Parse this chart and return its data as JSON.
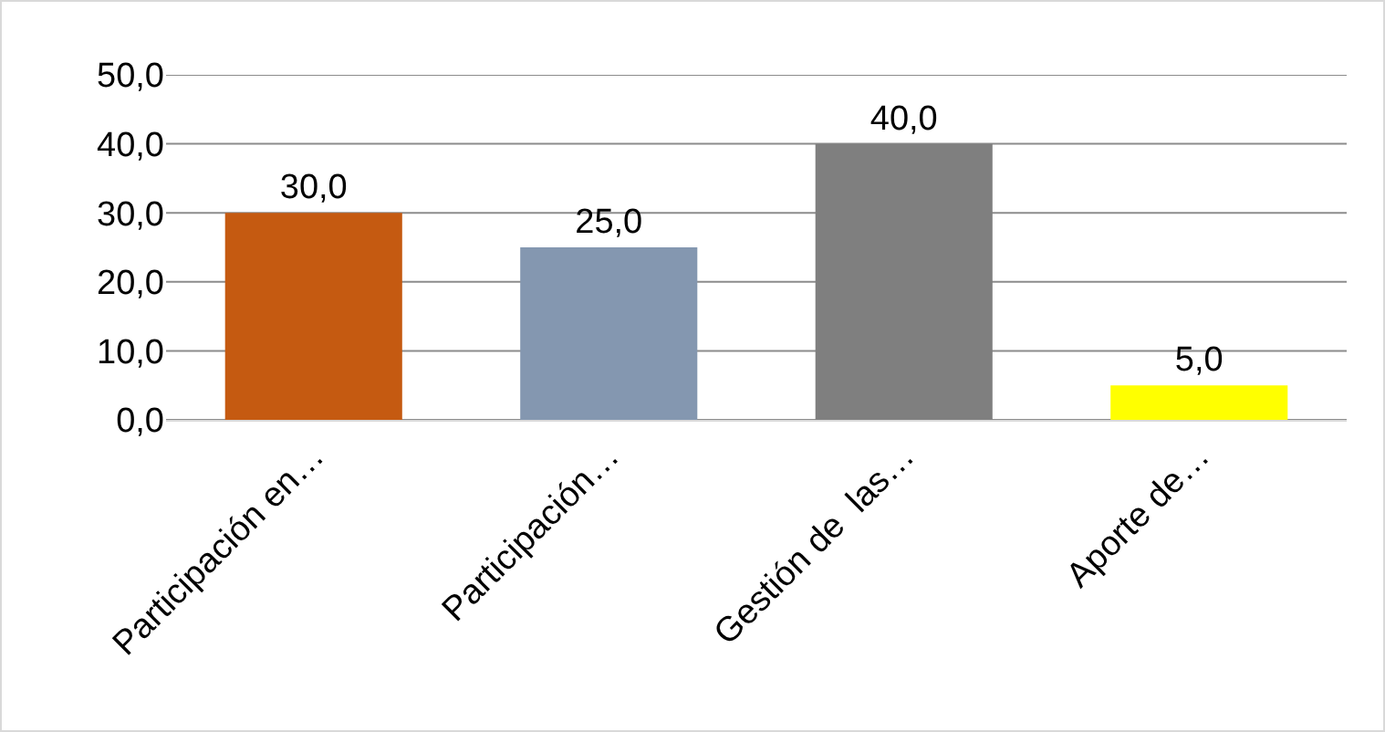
{
  "chart_data": {
    "type": "bar",
    "categories": [
      "Participación en…",
      "Participación…",
      "Gestión de  las…",
      "Aporte de…"
    ],
    "values": [
      30,
      25,
      40,
      5
    ],
    "colors": [
      "#c55a11",
      "#8497b0",
      "#7f7f7f",
      "#ffff00"
    ],
    "value_labels": [
      "30,0",
      "25,0",
      "40,0",
      "5,0"
    ],
    "ylim": [
      0,
      50
    ],
    "yticks": [
      {
        "value": 0,
        "label": "0,0"
      },
      {
        "value": 10,
        "label": "10,0"
      },
      {
        "value": 20,
        "label": "20,0"
      },
      {
        "value": 30,
        "label": "30,0"
      },
      {
        "value": 40,
        "label": "40,0"
      },
      {
        "value": 50,
        "label": "50,0"
      }
    ],
    "grid": "y"
  }
}
